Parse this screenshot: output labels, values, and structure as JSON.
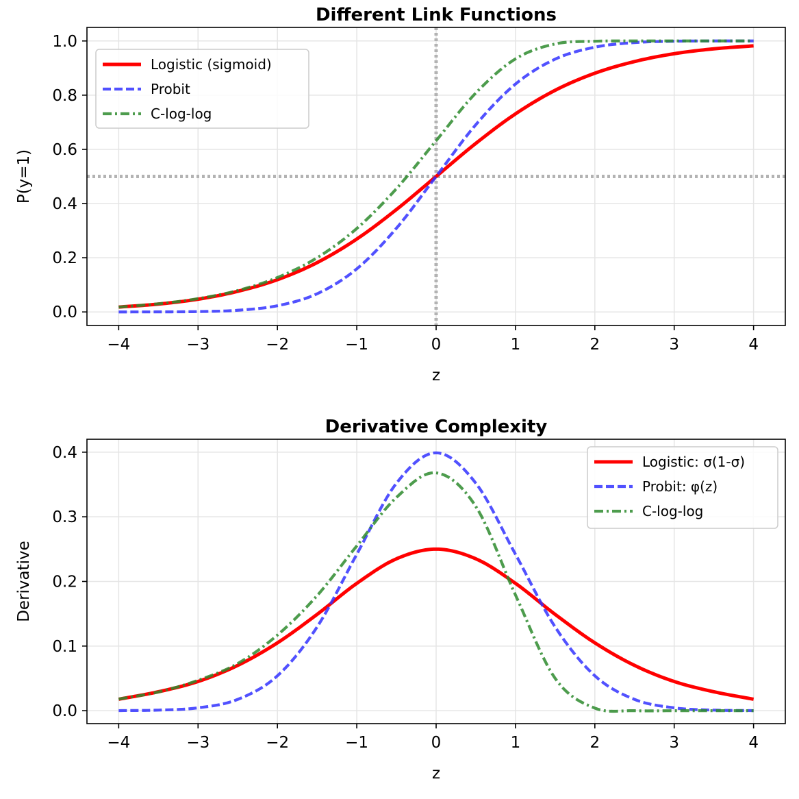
{
  "chart_data": [
    {
      "type": "line",
      "title": "Different Link Functions",
      "xlabel": "z",
      "ylabel": "P(y=1)",
      "xlim": [
        -4.4,
        4.4
      ],
      "ylim": [
        -0.05,
        1.05
      ],
      "xticks": [
        -4,
        -3,
        -2,
        -1,
        0,
        1,
        2,
        3,
        4
      ],
      "xtick_labels": [
        "−4",
        "−3",
        "−2",
        "−1",
        "0",
        "1",
        "2",
        "3",
        "4"
      ],
      "yticks": [
        0.0,
        0.2,
        0.4,
        0.6,
        0.8,
        1.0
      ],
      "ytick_labels": [
        "0.0",
        "0.2",
        "0.4",
        "0.6",
        "0.8",
        "1.0"
      ],
      "grid": true,
      "legend_position": "upper-left",
      "reference_lines": [
        {
          "orientation": "vertical",
          "value": 0,
          "color": "#b3b3b3",
          "style": "dotted"
        },
        {
          "orientation": "horizontal",
          "value": 0.5,
          "color": "#b3b3b3",
          "style": "dotted"
        }
      ],
      "x": [
        -4,
        -3.5,
        -3,
        -2.5,
        -2,
        -1.5,
        -1,
        -0.5,
        0,
        0.5,
        1,
        1.5,
        2,
        2.5,
        3,
        3.5,
        4
      ],
      "series": [
        {
          "name": "Logistic (sigmoid)",
          "color": "#ff0000",
          "style": "solid",
          "values": [
            0.018,
            0.029,
            0.047,
            0.076,
            0.119,
            0.182,
            0.269,
            0.378,
            0.5,
            0.622,
            0.731,
            0.818,
            0.881,
            0.924,
            0.953,
            0.971,
            0.982
          ]
        },
        {
          "name": "Probit",
          "color": "#3333ff",
          "style": "dashed",
          "values": [
            0.0,
            0.0002,
            0.0013,
            0.0062,
            0.023,
            0.067,
            0.159,
            0.309,
            0.5,
            0.691,
            0.841,
            0.933,
            0.977,
            0.994,
            0.999,
            1.0,
            1.0
          ]
        },
        {
          "name": "C-log-log",
          "color": "#2e8b2e",
          "style": "dashdot",
          "values": [
            0.018,
            0.03,
            0.049,
            0.079,
            0.127,
            0.2,
            0.308,
            0.455,
            0.632,
            0.808,
            0.934,
            0.989,
            0.999,
            1.0,
            1.0,
            1.0,
            1.0
          ]
        }
      ]
    },
    {
      "type": "line",
      "title": "Derivative Complexity",
      "xlabel": "z",
      "ylabel": "Derivative",
      "xlim": [
        -4.4,
        4.4
      ],
      "ylim": [
        -0.02,
        0.42
      ],
      "xticks": [
        -4,
        -3,
        -2,
        -1,
        0,
        1,
        2,
        3,
        4
      ],
      "xtick_labels": [
        "−4",
        "−3",
        "−2",
        "−1",
        "0",
        "1",
        "2",
        "3",
        "4"
      ],
      "yticks": [
        0.0,
        0.1,
        0.2,
        0.3,
        0.4
      ],
      "ytick_labels": [
        "0.0",
        "0.1",
        "0.2",
        "0.3",
        "0.4"
      ],
      "grid": true,
      "legend_position": "upper-right",
      "x": [
        -4,
        -3.5,
        -3,
        -2.5,
        -2,
        -1.5,
        -1,
        -0.5,
        0,
        0.5,
        1,
        1.5,
        2,
        2.5,
        3,
        3.5,
        4
      ],
      "series": [
        {
          "name": "Logistic: σ(1-σ)",
          "color": "#ff0000",
          "style": "solid",
          "values": [
            0.0177,
            0.0293,
            0.0452,
            0.0701,
            0.105,
            0.149,
            0.197,
            0.235,
            0.25,
            0.235,
            0.197,
            0.149,
            0.105,
            0.0701,
            0.0452,
            0.0293,
            0.0177
          ]
        },
        {
          "name": "Probit: φ(z)",
          "color": "#3333ff",
          "style": "dashed",
          "values": [
            0.0001,
            0.0009,
            0.0044,
            0.0175,
            0.054,
            0.1295,
            0.242,
            0.352,
            0.399,
            0.352,
            0.242,
            0.1295,
            0.054,
            0.0175,
            0.0044,
            0.0009,
            0.0001
          ]
        },
        {
          "name": "C-log-log",
          "color": "#2e8b2e",
          "style": "dashdot",
          "values": [
            0.018,
            0.029,
            0.047,
            0.073,
            0.117,
            0.178,
            0.255,
            0.33,
            0.368,
            0.316,
            0.179,
            0.05,
            0.004,
            0.0,
            0.0,
            0.0,
            0.0
          ]
        }
      ]
    }
  ]
}
